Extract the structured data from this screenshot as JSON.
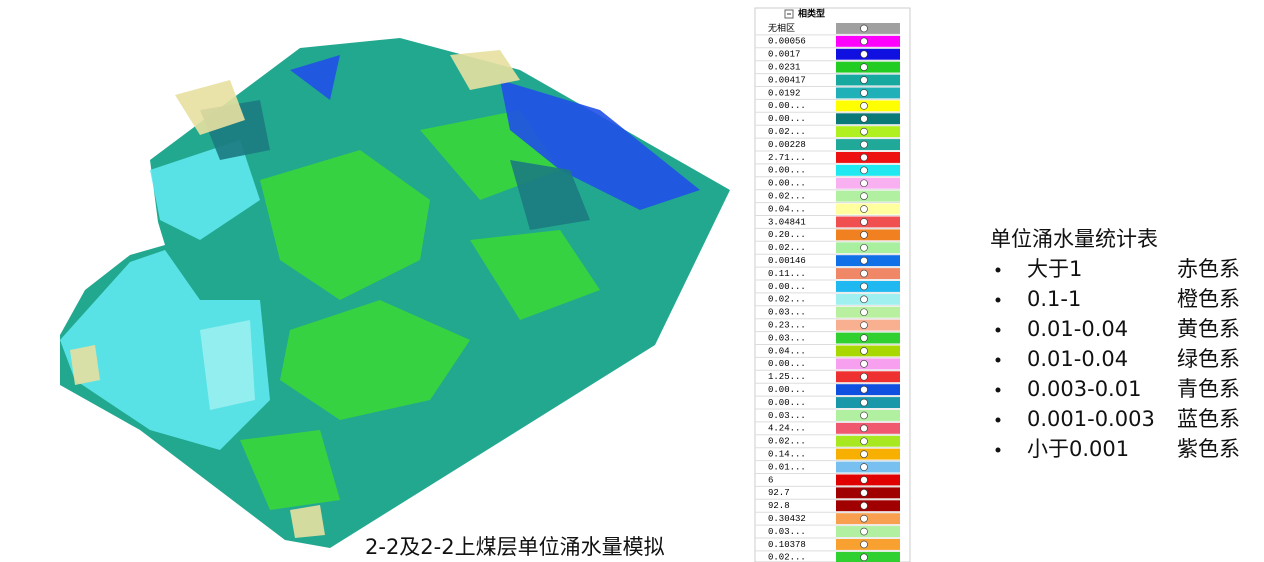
{
  "caption": "2-2及2-2上煤层单位涌水量模拟",
  "legend": {
    "header": "相类型",
    "rows": [
      {
        "label": "无相区",
        "color": "#a0a0a0"
      },
      {
        "label": "0.00056",
        "color": "#ff00ff"
      },
      {
        "label": "0.0017",
        "color": "#1010e0"
      },
      {
        "label": "0.0231",
        "color": "#22cc22"
      },
      {
        "label": "0.00417",
        "color": "#17a8a0"
      },
      {
        "label": "0.0192",
        "color": "#20b0b8"
      },
      {
        "label": "0.00...",
        "color": "#ffff00"
      },
      {
        "label": "0.00...",
        "color": "#0a7a78"
      },
      {
        "label": "0.02...",
        "color": "#b0f020"
      },
      {
        "label": "0.00228",
        "color": "#20a898"
      },
      {
        "label": "2.71...",
        "color": "#ee1111"
      },
      {
        "label": "0.00...",
        "color": "#20e8f0"
      },
      {
        "label": "0.00...",
        "color": "#f8b0f0"
      },
      {
        "label": "0.02...",
        "color": "#b0f0a0"
      },
      {
        "label": "0.04...",
        "color": "#ffffa0"
      },
      {
        "label": "3.04841",
        "color": "#f05050"
      },
      {
        "label": "0.20...",
        "color": "#f08020"
      },
      {
        "label": "0.02...",
        "color": "#a8f0a0"
      },
      {
        "label": "0.00146",
        "color": "#1070e8"
      },
      {
        "label": "0.11...",
        "color": "#f08868"
      },
      {
        "label": "0.00...",
        "color": "#20b8f0"
      },
      {
        "label": "0.02...",
        "color": "#a0f0f0"
      },
      {
        "label": "0.03...",
        "color": "#b8f0a0"
      },
      {
        "label": "0.23...",
        "color": "#f8b090"
      },
      {
        "label": "0.03...",
        "color": "#30d030"
      },
      {
        "label": "0.04...",
        "color": "#a8d800"
      },
      {
        "label": "0.00...",
        "color": "#f8a0f0"
      },
      {
        "label": "1.25...",
        "color": "#ee3030"
      },
      {
        "label": "0.00...",
        "color": "#1050e0"
      },
      {
        "label": "0.00...",
        "color": "#1898a8"
      },
      {
        "label": "0.03...",
        "color": "#b0f0a0"
      },
      {
        "label": "4.24...",
        "color": "#f05870"
      },
      {
        "label": "0.02...",
        "color": "#a8e820"
      },
      {
        "label": "0.14...",
        "color": "#f8b000"
      },
      {
        "label": "0.01...",
        "color": "#78c0f0"
      },
      {
        "label": "6",
        "color": "#e00000"
      },
      {
        "label": "92.7",
        "color": "#a00000"
      },
      {
        "label": "92.8",
        "color": "#a00000"
      },
      {
        "label": "0.30432",
        "color": "#f8a050"
      },
      {
        "label": "0.03...",
        "color": "#b0f0a0"
      },
      {
        "label": "0.10378",
        "color": "#f8a030"
      },
      {
        "label": "0.02...",
        "color": "#30d030"
      }
    ]
  },
  "stats": {
    "title": "单位涌水量统计表",
    "items": [
      {
        "range": "大于1",
        "color_name": "赤色系"
      },
      {
        "range": "0.1-1",
        "color_name": "橙色系"
      },
      {
        "range": "0.01-0.04",
        "color_name": "黄色系"
      },
      {
        "range": "0.01-0.04",
        "color_name": "绿色系"
      },
      {
        "range": "0.003-0.01",
        "color_name": "青色系"
      },
      {
        "range": "0.001-0.003",
        "color_name": "蓝色系"
      },
      {
        "range": "小于0.001",
        "color_name": "紫色系"
      }
    ]
  }
}
